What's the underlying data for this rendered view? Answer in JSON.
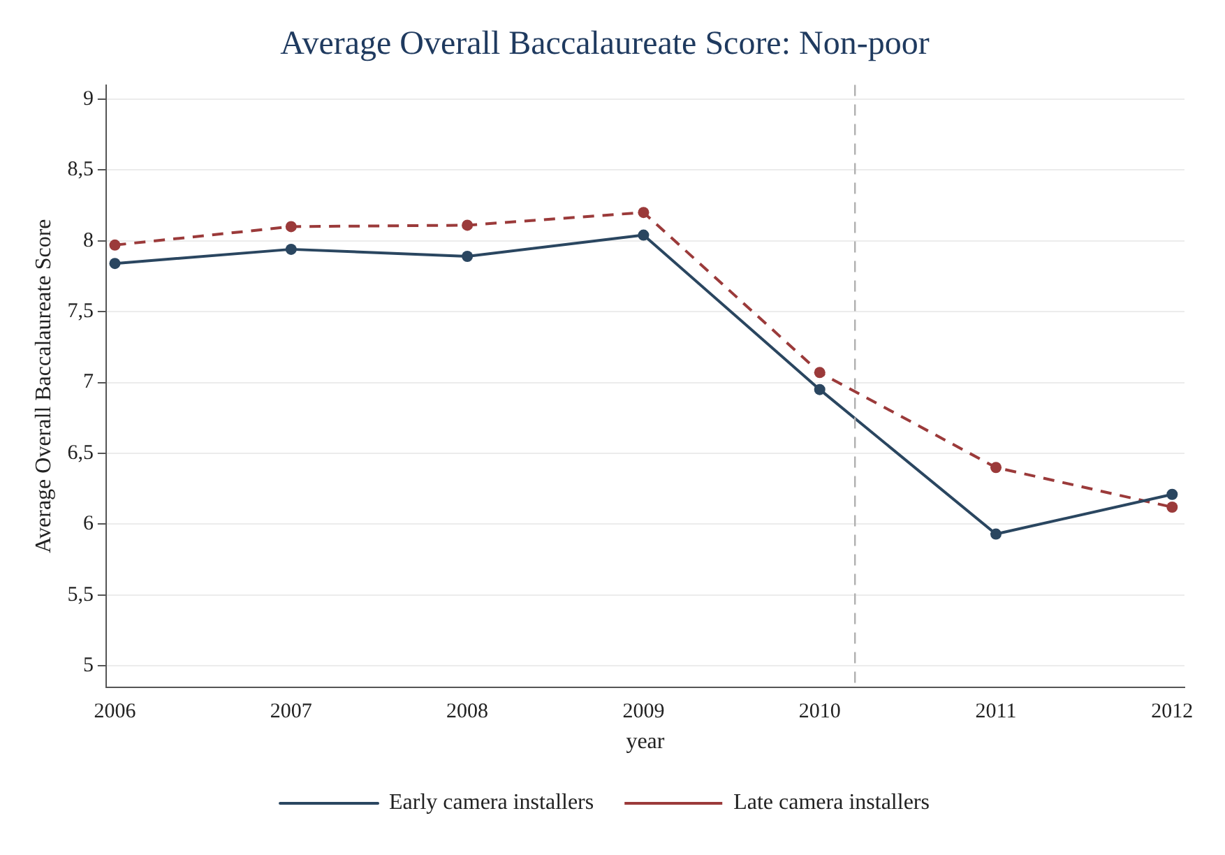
{
  "chart_data": {
    "type": "line",
    "title": "Average Overall Baccalaureate Score: Non-poor",
    "xlabel": "year",
    "ylabel": "Average Overall Baccalaureate Score",
    "x": [
      2006,
      2007,
      2008,
      2009,
      2010,
      2011,
      2012
    ],
    "series": [
      {
        "name": "Early camera installers",
        "color": "#2a4660",
        "line_style": "solid",
        "values": [
          7.84,
          7.94,
          7.89,
          8.04,
          6.95,
          5.93,
          6.21
        ]
      },
      {
        "name": "Late camera installers",
        "color": "#9b3a3a",
        "line_style": "dashed",
        "values": [
          7.97,
          8.1,
          8.11,
          8.2,
          7.07,
          6.4,
          6.12
        ]
      }
    ],
    "xlim": [
      2005.95,
      2012.07
    ],
    "xticks": [
      2006,
      2007,
      2008,
      2009,
      2010,
      2011,
      2012
    ],
    "ylim": [
      4.85,
      9.1
    ],
    "yticks": [
      5,
      {
        "value": 5.5,
        "label": "5,5"
      },
      6,
      {
        "value": 6.5,
        "label": "6,5"
      },
      7,
      {
        "value": 7.5,
        "label": "7,5"
      },
      8,
      {
        "value": 8.5,
        "label": "8,5"
      },
      9
    ],
    "ref_lines": [
      {
        "axis": "x",
        "value": 2010.2,
        "color": "#b0b0b0",
        "line_style": "dashed"
      }
    ],
    "grid": "y",
    "legend": "bottom",
    "marker": "circle"
  }
}
